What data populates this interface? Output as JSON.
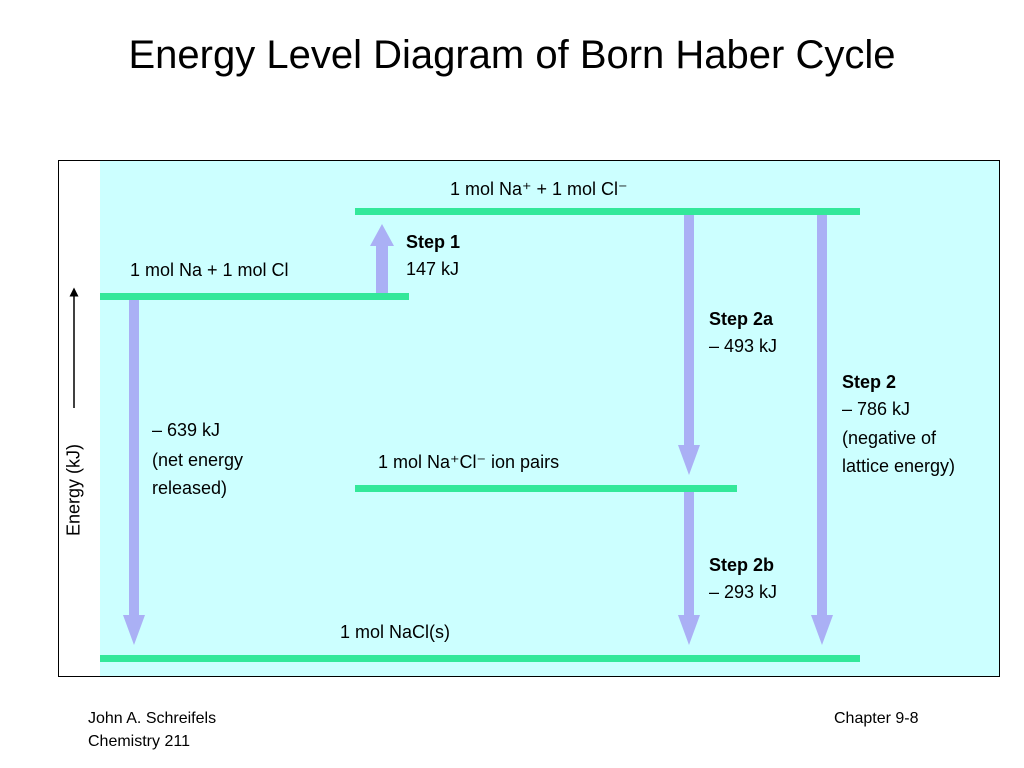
{
  "title": "Energy Level Diagram of Born Haber Cycle",
  "diagram": {
    "axis_label": "Energy (kJ)",
    "levels": [
      {
        "label": "1 mol Na⁺ + 1 mol Cl⁻"
      },
      {
        "label": "1 mol Na + 1 mol Cl"
      },
      {
        "label": "1 mol Na⁺Cl⁻ ion pairs"
      },
      {
        "label": "1 mol NaCl(s)"
      }
    ],
    "steps": [
      {
        "name": "Step 1",
        "energy": "147 kJ"
      },
      {
        "name": "Step 2a",
        "energy": "– 493 kJ"
      },
      {
        "name": "Step 2",
        "energy": "– 786 kJ",
        "note": [
          "(negative of",
          "lattice energy)"
        ]
      },
      {
        "name": "Step 2b",
        "energy": "– 293 kJ"
      }
    ],
    "net": {
      "energy": "– 639 kJ",
      "note": [
        "(net energy",
        "released)"
      ]
    }
  },
  "footer": {
    "left": [
      "John A. Schreifels",
      "Chemistry 211"
    ],
    "right": "Chapter 9-8"
  }
}
